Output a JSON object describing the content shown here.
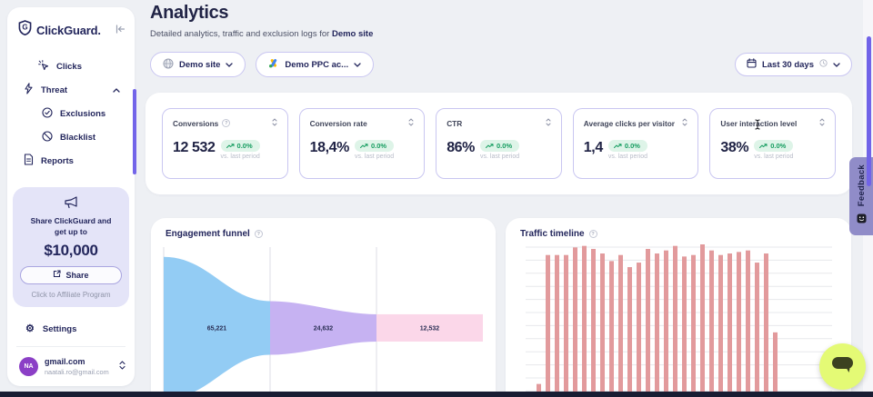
{
  "app": {
    "brand": "ClickGuard."
  },
  "sidebar": {
    "items": [
      {
        "label": "Clicks"
      },
      {
        "label": "Threat"
      },
      {
        "label": "Exclusions"
      },
      {
        "label": "Blacklist"
      },
      {
        "label": "Reports"
      }
    ],
    "promo": {
      "line1": "Share ClickGuard and",
      "line2": "get up to",
      "amount": "$10,000",
      "share_label": "Share",
      "footer": "Click to Affiliate Program"
    },
    "settings_label": "Settings",
    "account": {
      "initials": "NA",
      "name": "gmail.com",
      "email": "naatali.ro@gmail.com"
    }
  },
  "header": {
    "title": "Analytics",
    "subtitle_prefix": "Detailed analytics, traffic and exclusion logs for ",
    "subtitle_bold": "Demo site",
    "site_selector": "Demo site",
    "account_selector": "Demo PPC ac...",
    "date_range": "Last 30 days"
  },
  "metrics": [
    {
      "label": "Conversions",
      "value": "12 532",
      "change": "0.0%",
      "sub": "vs. last period"
    },
    {
      "label": "Conversion rate",
      "value": "18,4%",
      "change": "0.0%",
      "sub": "vs. last period"
    },
    {
      "label": "CTR",
      "value": "86%",
      "change": "0.0%",
      "sub": "vs. last period"
    },
    {
      "label": "Average clicks per visitor",
      "value": "1,4",
      "change": "0.0%",
      "sub": "vs. last period"
    },
    {
      "label": "User interaction level",
      "value": "38%",
      "change": "0.0%",
      "sub": "vs. last period"
    }
  ],
  "chart_data": [
    {
      "type": "funnel",
      "title": "Engagement funnel",
      "stages": [
        {
          "label": "65,221",
          "value": 65221,
          "color": "#93ccf4"
        },
        {
          "label": "24,632",
          "value": 24632,
          "color": "#c6b2f2"
        },
        {
          "label": "12,532",
          "value": 12532,
          "color": "#fbd7e9"
        }
      ],
      "grid": "vertical section lines",
      "note": "funnel narrows left to right, bottom edge cut off by viewport"
    },
    {
      "type": "bar",
      "title": "Traffic timeline",
      "values_pct": [
        8,
        93,
        93,
        93,
        98,
        99,
        97,
        94,
        89,
        93,
        85,
        88,
        97,
        94,
        96,
        99,
        92,
        93,
        100,
        96,
        93,
        94,
        95,
        96,
        88,
        94,
        42
      ],
      "bar_color": "#e29a9c",
      "grid": "horizontal",
      "ylim": [
        0,
        100
      ],
      "note": "x-axis and baseline cut off below viewport; right side of plot empty"
    }
  ],
  "feedback_label": "Feedback",
  "icons": {
    "help_glyph": "?",
    "gear_glyph": "⚙"
  },
  "colors": {
    "page_bg": "#eef0f4",
    "navy_text": "#23265c",
    "accent_purple": "#7163e8",
    "card_border": "#c9c6f1",
    "badge_green_bg": "#def4e8",
    "badge_green_text": "#169d60",
    "funnel_blue": "#93ccf4",
    "funnel_purple": "#c6b2f2",
    "funnel_pink": "#fbd7e9",
    "bar_pink": "#e29a9c",
    "promo_bg": "#e4e4f8",
    "feedback_bg": "#908cc8",
    "chat_bg": "#e4fa75",
    "avatar_bg": "#8b3fc6",
    "bottom_strip": "#191d33"
  }
}
